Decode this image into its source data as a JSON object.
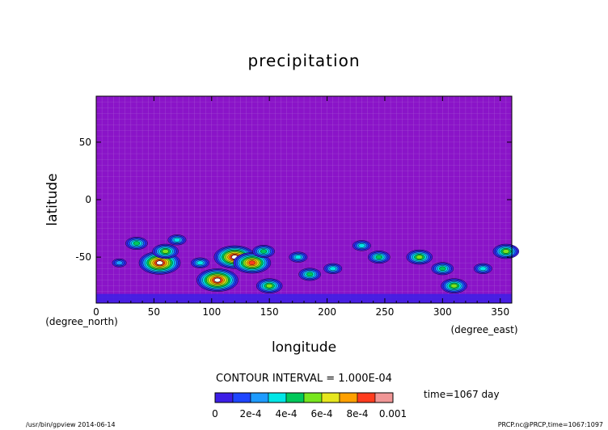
{
  "chart_data": {
    "type": "heatmap",
    "title": "precipitation",
    "xlabel": "longitude",
    "ylabel": "latitude",
    "x_units": "(degree_east)",
    "y_units": "(degree_north)",
    "xlim": [
      0,
      360
    ],
    "ylim": [
      -90,
      90
    ],
    "x_ticks": [
      0,
      50,
      100,
      150,
      200,
      250,
      300,
      350
    ],
    "y_ticks": [
      -50,
      0,
      50
    ],
    "contour_interval_text": "CONTOUR INTERVAL = 1.000E-04",
    "time_label": "time=1067 day",
    "colorbar": {
      "tick_labels": [
        "0",
        "2e-4",
        "4e-4",
        "6e-4",
        "8e-4",
        "0.001"
      ],
      "levels": [
        0,
        0.0001,
        0.0002,
        0.0003,
        0.0004,
        0.0005,
        0.0006,
        0.0007,
        0.0008,
        0.0009,
        0.001
      ],
      "colors": [
        "#8a14c8",
        "#3c1ee6",
        "#1e46ff",
        "#1e9bff",
        "#00e6e6",
        "#00c85a",
        "#78e61e",
        "#e6e61e",
        "#ffa000",
        "#ff3c1e",
        "#f09696"
      ]
    },
    "background_value": 0,
    "features": [
      {
        "lon": 20,
        "lat": -55,
        "level": 3
      },
      {
        "lon": 35,
        "lat": -38,
        "level": 5
      },
      {
        "lon": 55,
        "lat": -55,
        "level": 10
      },
      {
        "lon": 60,
        "lat": -45,
        "level": 6
      },
      {
        "lon": 70,
        "lat": -35,
        "level": 4
      },
      {
        "lon": 90,
        "lat": -55,
        "level": 4
      },
      {
        "lon": 105,
        "lat": -70,
        "level": 10
      },
      {
        "lon": 120,
        "lat": -50,
        "level": 10
      },
      {
        "lon": 135,
        "lat": -55,
        "level": 9
      },
      {
        "lon": 145,
        "lat": -45,
        "level": 5
      },
      {
        "lon": 150,
        "lat": -75,
        "level": 6
      },
      {
        "lon": 175,
        "lat": -50,
        "level": 4
      },
      {
        "lon": 185,
        "lat": -65,
        "level": 5
      },
      {
        "lon": 205,
        "lat": -60,
        "level": 4
      },
      {
        "lon": 230,
        "lat": -40,
        "level": 4
      },
      {
        "lon": 245,
        "lat": -50,
        "level": 5
      },
      {
        "lon": 280,
        "lat": -50,
        "level": 6
      },
      {
        "lon": 300,
        "lat": -60,
        "level": 5
      },
      {
        "lon": 310,
        "lat": -75,
        "level": 6
      },
      {
        "lon": 335,
        "lat": -60,
        "level": 4
      },
      {
        "lon": 355,
        "lat": -45,
        "level": 6
      }
    ]
  },
  "footer": {
    "left": "/usr/bin/gpview  2014-06-14",
    "right": "PRCP.nc@PRCP,time=1067:1097"
  }
}
